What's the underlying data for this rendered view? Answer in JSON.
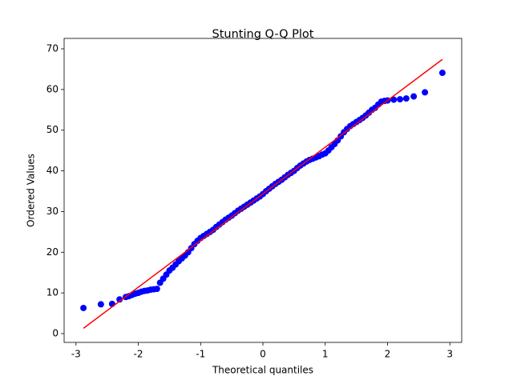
{
  "chart_data": {
    "type": "scatter",
    "title": "Stunting Q-Q Plot",
    "xlabel": "Theoretical quantiles",
    "ylabel": "Ordered Values",
    "xlim": [
      -3.19,
      3.19
    ],
    "ylim": [
      -2.16,
      72.56
    ],
    "xticks": [
      -3,
      -2,
      -1,
      0,
      1,
      2,
      3
    ],
    "yticks": [
      0,
      10,
      20,
      30,
      40,
      50,
      60,
      70
    ],
    "series": [
      {
        "type": "scatter",
        "color": "#0000ff",
        "x": [
          -2.88,
          -2.6,
          -2.42,
          -2.3,
          -2.2,
          -2.15,
          -2.1,
          -2.05,
          -2.0,
          -1.95,
          -1.9,
          -1.85,
          -1.8,
          -1.75,
          -1.7,
          -1.65,
          -1.6,
          -1.55,
          -1.5,
          -1.45,
          -1.4,
          -1.35,
          -1.3,
          -1.25,
          -1.2,
          -1.15,
          -1.1,
          -1.05,
          -1.0,
          -0.95,
          -0.9,
          -0.85,
          -0.8,
          -0.75,
          -0.7,
          -0.65,
          -0.6,
          -0.55,
          -0.5,
          -0.45,
          -0.4,
          -0.35,
          -0.3,
          -0.25,
          -0.2,
          -0.15,
          -0.1,
          -0.05,
          0.0,
          0.05,
          0.1,
          0.15,
          0.2,
          0.25,
          0.3,
          0.35,
          0.4,
          0.45,
          0.5,
          0.55,
          0.6,
          0.65,
          0.7,
          0.75,
          0.8,
          0.85,
          0.9,
          0.95,
          1.0,
          1.05,
          1.1,
          1.15,
          1.2,
          1.25,
          1.3,
          1.35,
          1.4,
          1.45,
          1.5,
          1.55,
          1.6,
          1.65,
          1.7,
          1.75,
          1.8,
          1.85,
          1.9,
          1.95,
          2.0,
          2.1,
          2.2,
          2.3,
          2.42,
          2.6,
          2.88
        ],
        "values": [
          6.3,
          7.2,
          7.3,
          8.4,
          9.0,
          9.2,
          9.5,
          9.8,
          10.0,
          10.3,
          10.5,
          10.6,
          10.8,
          10.9,
          11.0,
          12.5,
          13.5,
          14.5,
          15.5,
          16.2,
          17.0,
          17.8,
          18.5,
          19.2,
          20.0,
          21.0,
          22.0,
          22.8,
          23.5,
          24.0,
          24.5,
          25.0,
          25.5,
          26.2,
          26.8,
          27.4,
          28.0,
          28.5,
          29.0,
          29.6,
          30.2,
          30.7,
          31.2,
          31.7,
          32.2,
          32.7,
          33.2,
          33.7,
          34.3,
          35.0,
          35.6,
          36.2,
          36.8,
          37.3,
          37.8,
          38.4,
          39.0,
          39.5,
          40.0,
          40.7,
          41.3,
          41.8,
          42.3,
          42.7,
          43.0,
          43.3,
          43.6,
          44.0,
          44.3,
          45.0,
          45.8,
          46.6,
          47.5,
          48.5,
          49.5,
          50.3,
          51.0,
          51.5,
          52.0,
          52.5,
          53.0,
          53.6,
          54.3,
          55.0,
          55.5,
          56.3,
          57.0,
          57.2,
          57.3,
          57.5,
          57.6,
          57.8,
          58.3,
          59.3,
          64.1
        ]
      },
      {
        "type": "line",
        "color": "#ff0000",
        "x": [
          -2.88,
          2.88
        ],
        "values": [
          1.3,
          67.4
        ]
      }
    ]
  }
}
